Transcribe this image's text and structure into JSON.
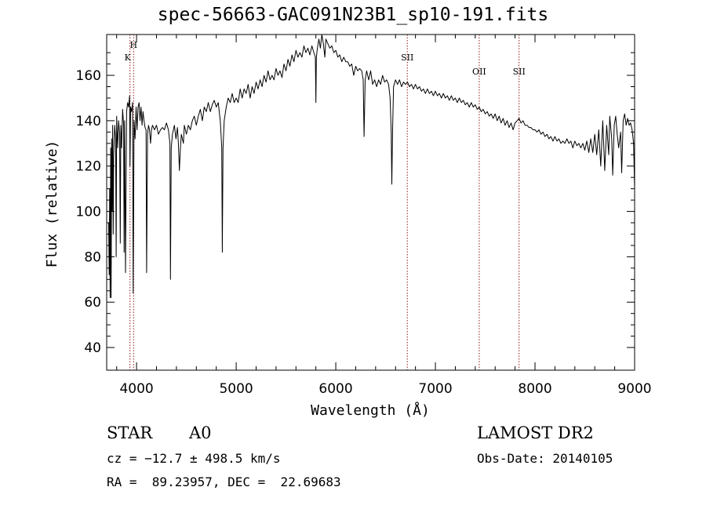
{
  "header": {
    "title": "spec-56663-GAC091N23B1_sp10-191.fits"
  },
  "info": {
    "obj_class": "STAR",
    "subclass": "A0",
    "survey": "LAMOST DR2",
    "cz": "cz = −12.7 ± 498.5 km/s",
    "obs_date": "Obs-Date: 20140105",
    "radec": "RA =  89.23957, DEC =  22.69683"
  },
  "chart_data": {
    "type": "line",
    "title": "spec-56663-GAC091N23B1_sp10-191.fits",
    "xlabel": "Wavelength (Å)",
    "ylabel": "Flux (relative)",
    "xlim": [
      3700,
      9000
    ],
    "ylim": [
      30,
      178
    ],
    "xticks": [
      4000,
      5000,
      6000,
      7000,
      8000,
      9000
    ],
    "yticks": [
      40,
      60,
      80,
      100,
      120,
      140,
      160
    ],
    "grid": false,
    "line_color": "#000000",
    "marker_color": "#8b1a1a",
    "lines": [
      {
        "label": "H",
        "x": 3970
      },
      {
        "label": "K",
        "x": 3934
      },
      {
        "label": "SII",
        "x": 6718
      },
      {
        "label": "OII",
        "x": 7440
      },
      {
        "label": "SII",
        "x": 7840
      }
    ],
    "series": [
      {
        "points": [
          [
            3720,
            95
          ],
          [
            3725,
            72
          ],
          [
            3730,
            110
          ],
          [
            3735,
            62
          ],
          [
            3740,
            128
          ],
          [
            3745,
            62
          ],
          [
            3750,
            132
          ],
          [
            3755,
            100
          ],
          [
            3760,
            138
          ],
          [
            3765,
            90
          ],
          [
            3770,
            124
          ],
          [
            3780,
            138
          ],
          [
            3790,
            132
          ],
          [
            3795,
            80
          ],
          [
            3800,
            142
          ],
          [
            3810,
            128
          ],
          [
            3820,
            140
          ],
          [
            3830,
            134
          ],
          [
            3836,
            86
          ],
          [
            3842,
            138
          ],
          [
            3850,
            128
          ],
          [
            3860,
            145
          ],
          [
            3870,
            138
          ],
          [
            3875,
            82
          ],
          [
            3880,
            140
          ],
          [
            3889,
            73
          ],
          [
            3900,
            144
          ],
          [
            3910,
            148
          ],
          [
            3920,
            146
          ],
          [
            3930,
            151
          ],
          [
            3934,
            120
          ],
          [
            3940,
            146
          ],
          [
            3950,
            144
          ],
          [
            3960,
            148
          ],
          [
            3966,
            64
          ],
          [
            3975,
            140
          ],
          [
            3985,
            132
          ],
          [
            3995,
            146
          ],
          [
            4005,
            136
          ],
          [
            4015,
            146
          ],
          [
            4025,
            148
          ],
          [
            4035,
            140
          ],
          [
            4045,
            146
          ],
          [
            4055,
            138
          ],
          [
            4065,
            144
          ],
          [
            4075,
            140
          ],
          [
            4085,
            137
          ],
          [
            4095,
            136
          ],
          [
            4101,
            73
          ],
          [
            4110,
            134
          ],
          [
            4120,
            138
          ],
          [
            4130,
            136
          ],
          [
            4140,
            130
          ],
          [
            4150,
            136
          ],
          [
            4160,
            138
          ],
          [
            4180,
            136
          ],
          [
            4200,
            138
          ],
          [
            4220,
            134
          ],
          [
            4240,
            136
          ],
          [
            4260,
            137
          ],
          [
            4280,
            136
          ],
          [
            4300,
            139
          ],
          [
            4320,
            136
          ],
          [
            4335,
            130
          ],
          [
            4340,
            70
          ],
          [
            4348,
            128
          ],
          [
            4360,
            134
          ],
          [
            4370,
            136
          ],
          [
            4380,
            138
          ],
          [
            4395,
            132
          ],
          [
            4410,
            137
          ],
          [
            4420,
            130
          ],
          [
            4430,
            118
          ],
          [
            4440,
            128
          ],
          [
            4450,
            134
          ],
          [
            4470,
            130
          ],
          [
            4480,
            138
          ],
          [
            4500,
            134
          ],
          [
            4520,
            138
          ],
          [
            4540,
            136
          ],
          [
            4560,
            140
          ],
          [
            4580,
            142
          ],
          [
            4600,
            138
          ],
          [
            4620,
            142
          ],
          [
            4640,
            145
          ],
          [
            4660,
            140
          ],
          [
            4680,
            146
          ],
          [
            4700,
            144
          ],
          [
            4720,
            148
          ],
          [
            4740,
            144
          ],
          [
            4760,
            147
          ],
          [
            4780,
            149
          ],
          [
            4800,
            146
          ],
          [
            4820,
            148
          ],
          [
            4840,
            140
          ],
          [
            4855,
            128
          ],
          [
            4861,
            82
          ],
          [
            4868,
            128
          ],
          [
            4880,
            140
          ],
          [
            4900,
            146
          ],
          [
            4920,
            150
          ],
          [
            4940,
            148
          ],
          [
            4960,
            152
          ],
          [
            4980,
            148
          ],
          [
            5000,
            150
          ],
          [
            5020,
            148
          ],
          [
            5040,
            154
          ],
          [
            5060,
            150
          ],
          [
            5080,
            154
          ],
          [
            5100,
            152
          ],
          [
            5120,
            156
          ],
          [
            5140,
            150
          ],
          [
            5160,
            155
          ],
          [
            5180,
            152
          ],
          [
            5200,
            157
          ],
          [
            5220,
            154
          ],
          [
            5240,
            158
          ],
          [
            5260,
            155
          ],
          [
            5280,
            160
          ],
          [
            5300,
            157
          ],
          [
            5320,
            162
          ],
          [
            5340,
            158
          ],
          [
            5360,
            160
          ],
          [
            5380,
            158
          ],
          [
            5400,
            163
          ],
          [
            5420,
            160
          ],
          [
            5440,
            162
          ],
          [
            5460,
            159
          ],
          [
            5480,
            165
          ],
          [
            5500,
            162
          ],
          [
            5520,
            167
          ],
          [
            5540,
            164
          ],
          [
            5560,
            169
          ],
          [
            5580,
            166
          ],
          [
            5600,
            171
          ],
          [
            5620,
            168
          ],
          [
            5640,
            170
          ],
          [
            5660,
            168
          ],
          [
            5680,
            173
          ],
          [
            5700,
            170
          ],
          [
            5720,
            172
          ],
          [
            5740,
            169
          ],
          [
            5760,
            173
          ],
          [
            5780,
            170
          ],
          [
            5795,
            168
          ],
          [
            5800,
            148
          ],
          [
            5805,
            168
          ],
          [
            5815,
            172
          ],
          [
            5830,
            176
          ],
          [
            5845,
            172
          ],
          [
            5860,
            178
          ],
          [
            5875,
            174
          ],
          [
            5890,
            168
          ],
          [
            5900,
            176
          ],
          [
            5920,
            174
          ],
          [
            5940,
            172
          ],
          [
            5960,
            173
          ],
          [
            5980,
            170
          ],
          [
            6000,
            171
          ],
          [
            6020,
            168
          ],
          [
            6040,
            169
          ],
          [
            6060,
            166
          ],
          [
            6080,
            168
          ],
          [
            6100,
            166
          ],
          [
            6120,
            166
          ],
          [
            6140,
            164
          ],
          [
            6160,
            165
          ],
          [
            6180,
            160
          ],
          [
            6200,
            164
          ],
          [
            6220,
            162
          ],
          [
            6240,
            163
          ],
          [
            6260,
            162
          ],
          [
            6275,
            158
          ],
          [
            6284,
            133
          ],
          [
            6295,
            158
          ],
          [
            6310,
            162
          ],
          [
            6330,
            158
          ],
          [
            6350,
            162
          ],
          [
            6370,
            156
          ],
          [
            6390,
            158
          ],
          [
            6410,
            155
          ],
          [
            6430,
            158
          ],
          [
            6450,
            156
          ],
          [
            6470,
            160
          ],
          [
            6490,
            157
          ],
          [
            6510,
            158
          ],
          [
            6530,
            156
          ],
          [
            6545,
            150
          ],
          [
            6556,
            135
          ],
          [
            6563,
            112
          ],
          [
            6570,
            135
          ],
          [
            6580,
            155
          ],
          [
            6600,
            158
          ],
          [
            6620,
            156
          ],
          [
            6640,
            158
          ],
          [
            6660,
            155
          ],
          [
            6680,
            157
          ],
          [
            6700,
            156
          ],
          [
            6720,
            157
          ],
          [
            6740,
            155
          ],
          [
            6760,
            156
          ],
          [
            6780,
            154
          ],
          [
            6800,
            156
          ],
          [
            6820,
            154
          ],
          [
            6840,
            155
          ],
          [
            6860,
            153
          ],
          [
            6880,
            154
          ],
          [
            6900,
            152
          ],
          [
            6920,
            154
          ],
          [
            6940,
            152
          ],
          [
            6960,
            153
          ],
          [
            6980,
            151
          ],
          [
            7000,
            153
          ],
          [
            7020,
            151
          ],
          [
            7040,
            152
          ],
          [
            7060,
            150
          ],
          [
            7080,
            152
          ],
          [
            7100,
            150
          ],
          [
            7120,
            151
          ],
          [
            7140,
            149
          ],
          [
            7160,
            151
          ],
          [
            7180,
            149
          ],
          [
            7200,
            150
          ],
          [
            7220,
            148
          ],
          [
            7240,
            150
          ],
          [
            7260,
            148
          ],
          [
            7280,
            149
          ],
          [
            7300,
            147
          ],
          [
            7320,
            148
          ],
          [
            7340,
            146
          ],
          [
            7360,
            148
          ],
          [
            7380,
            146
          ],
          [
            7400,
            147
          ],
          [
            7420,
            145
          ],
          [
            7440,
            146
          ],
          [
            7460,
            144
          ],
          [
            7480,
            145
          ],
          [
            7500,
            143
          ],
          [
            7520,
            144
          ],
          [
            7540,
            142
          ],
          [
            7560,
            143
          ],
          [
            7580,
            141
          ],
          [
            7600,
            143
          ],
          [
            7620,
            140
          ],
          [
            7640,
            142
          ],
          [
            7660,
            139
          ],
          [
            7680,
            141
          ],
          [
            7700,
            138
          ],
          [
            7720,
            140
          ],
          [
            7740,
            137
          ],
          [
            7760,
            139
          ],
          [
            7780,
            136
          ],
          [
            7800,
            139
          ],
          [
            7820,
            140
          ],
          [
            7840,
            141
          ],
          [
            7860,
            139
          ],
          [
            7880,
            140
          ],
          [
            7900,
            138
          ],
          [
            7920,
            138
          ],
          [
            7940,
            137
          ],
          [
            7960,
            137
          ],
          [
            7980,
            136
          ],
          [
            8000,
            136
          ],
          [
            8020,
            135
          ],
          [
            8040,
            136
          ],
          [
            8060,
            134
          ],
          [
            8080,
            135
          ],
          [
            8100,
            133
          ],
          [
            8120,
            134
          ],
          [
            8140,
            132
          ],
          [
            8160,
            133
          ],
          [
            8180,
            131
          ],
          [
            8200,
            133
          ],
          [
            8220,
            131
          ],
          [
            8240,
            132
          ],
          [
            8260,
            130
          ],
          [
            8280,
            131
          ],
          [
            8300,
            130
          ],
          [
            8320,
            132
          ],
          [
            8340,
            130
          ],
          [
            8360,
            131
          ],
          [
            8380,
            128
          ],
          [
            8400,
            131
          ],
          [
            8420,
            129
          ],
          [
            8440,
            130
          ],
          [
            8460,
            128
          ],
          [
            8480,
            130
          ],
          [
            8500,
            127
          ],
          [
            8520,
            131
          ],
          [
            8540,
            126
          ],
          [
            8560,
            132
          ],
          [
            8580,
            126
          ],
          [
            8600,
            134
          ],
          [
            8620,
            125
          ],
          [
            8640,
            136
          ],
          [
            8660,
            120
          ],
          [
            8680,
            140
          ],
          [
            8700,
            118
          ],
          [
            8720,
            138
          ],
          [
            8740,
            125
          ],
          [
            8750,
            142
          ],
          [
            8770,
            132
          ],
          [
            8780,
            116
          ],
          [
            8795,
            138
          ],
          [
            8810,
            142
          ],
          [
            8825,
            134
          ],
          [
            8840,
            128
          ],
          [
            8860,
            135
          ],
          [
            8870,
            117
          ],
          [
            8885,
            140
          ],
          [
            8900,
            143
          ],
          [
            8915,
            138
          ],
          [
            8930,
            141
          ],
          [
            8945,
            138
          ],
          [
            8960,
            139
          ],
          [
            8975,
            136
          ],
          [
            8990,
            130
          ],
          [
            9000,
            110
          ]
        ]
      }
    ]
  }
}
